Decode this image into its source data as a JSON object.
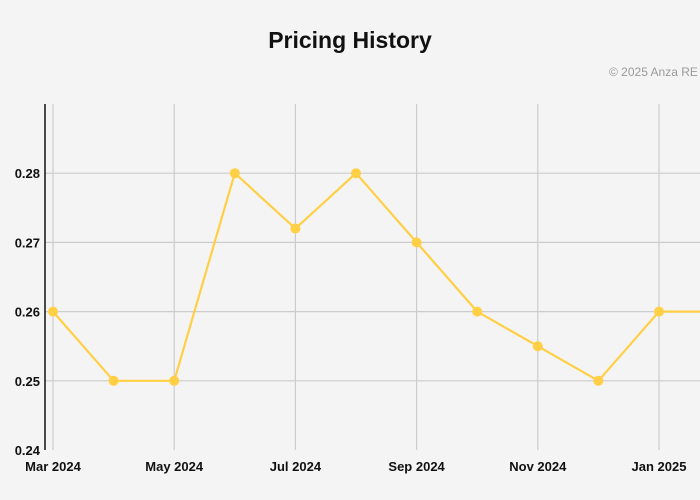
{
  "chart_data": {
    "type": "line",
    "title": "Pricing History",
    "copyright": "© 2025 Anza RE",
    "xlabel": "",
    "ylabel": "",
    "x": [
      "2024-03",
      "2024-04",
      "2024-05",
      "2024-06",
      "2024-07",
      "2024-08",
      "2024-09",
      "2024-10",
      "2024-11",
      "2024-12",
      "2025-01",
      "2025-02"
    ],
    "x_ticks": [
      {
        "month": "2024-03",
        "label": "Mar 2024"
      },
      {
        "month": "2024-05",
        "label": "May 2024"
      },
      {
        "month": "2024-07",
        "label": "Jul 2024"
      },
      {
        "month": "2024-09",
        "label": "Sep 2024"
      },
      {
        "month": "2024-11",
        "label": "Nov 2024"
      },
      {
        "month": "2025-01",
        "label": "Jan 2025"
      }
    ],
    "y_ticks": [
      "0.24",
      "0.25",
      "0.26",
      "0.27",
      "0.28"
    ],
    "ylim": [
      0.24,
      0.29
    ],
    "series": [
      {
        "values": [
          0.26,
          0.25,
          0.25,
          0.28,
          0.272,
          0.28,
          0.27,
          0.26,
          0.255,
          0.25,
          0.26,
          0.26
        ],
        "color": "#ffcf45"
      }
    ],
    "grid": true,
    "colors": {
      "background": "#f4f4f4",
      "grid": "#cccccc",
      "axis": "#111111"
    }
  }
}
